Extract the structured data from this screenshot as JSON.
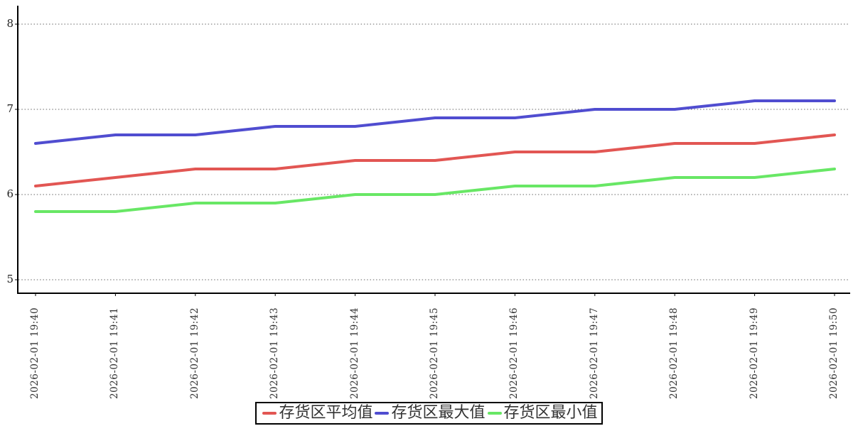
{
  "chart_data": {
    "type": "line",
    "title": "",
    "xlabel": "",
    "ylabel": "",
    "x": [
      "2026-02-01 19:40",
      "2026-02-01 19:41",
      "2026-02-01 19:42",
      "2026-02-01 19:43",
      "2026-02-01 19:44",
      "2026-02-01 19:45",
      "2026-02-01 19:46",
      "2026-02-01 19:47",
      "2026-02-01 19:48",
      "2026-02-01 19:49",
      "2026-02-01 19:50"
    ],
    "series": [
      {
        "name": "存货区平均值",
        "color": "#e25653",
        "values": [
          6.1,
          6.2,
          6.3,
          6.3,
          6.4,
          6.4,
          6.5,
          6.5,
          6.6,
          6.6,
          6.7
        ]
      },
      {
        "name": "存货区最大值",
        "color": "#504dd0",
        "values": [
          6.6,
          6.7,
          6.7,
          6.8,
          6.8,
          6.9,
          6.9,
          7.0,
          7.0,
          7.1,
          7.1
        ]
      },
      {
        "name": "存货区最小值",
        "color": "#68e765",
        "values": [
          5.8,
          5.8,
          5.9,
          5.9,
          6.0,
          6.0,
          6.1,
          6.1,
          6.2,
          6.2,
          6.3
        ]
      }
    ],
    "yticks": [
      5,
      6,
      7,
      8
    ],
    "ylim": [
      4.84,
      8.22
    ],
    "grid": "horizontal-dotted",
    "grid_color": "#666666",
    "axis_color": "#000000",
    "legend_position": "bottom-center"
  }
}
